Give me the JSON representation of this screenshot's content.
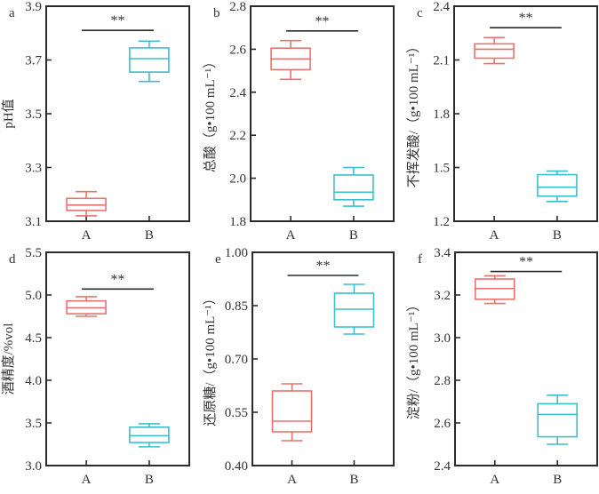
{
  "colors": {
    "A": "#e8736e",
    "B": "#3bbfcc",
    "axis": "#2b2b2b"
  },
  "chart_data": [
    {
      "type": "box",
      "panel_label": "a",
      "ylabel": "pH值",
      "ylim": [
        3.1,
        3.9
      ],
      "yticks": [
        "3.1",
        "3.3",
        "3.5",
        "3.7",
        "3.9"
      ],
      "categories": [
        "A",
        "B"
      ],
      "series": [
        {
          "name": "A",
          "whisker_low": 3.12,
          "q1": 3.14,
          "median": 3.16,
          "q3": 3.185,
          "whisker_high": 3.21
        },
        {
          "name": "B",
          "whisker_low": 3.62,
          "q1": 3.655,
          "median": 3.705,
          "q3": 3.745,
          "whisker_high": 3.77
        }
      ],
      "significance": {
        "label": "**",
        "level": 3.81
      }
    },
    {
      "type": "box",
      "panel_label": "b",
      "ylabel": "总酸（g•100 mL⁻¹）",
      "ylim": [
        1.8,
        2.8
      ],
      "yticks": [
        "1.8",
        "2.0",
        "2.2",
        "2.4",
        "2.6",
        "2.8"
      ],
      "categories": [
        "A",
        "B"
      ],
      "series": [
        {
          "name": "A",
          "whisker_low": 2.46,
          "q1": 2.505,
          "median": 2.555,
          "q3": 2.605,
          "whisker_high": 2.64
        },
        {
          "name": "B",
          "whisker_low": 1.87,
          "q1": 1.9,
          "median": 1.935,
          "q3": 2.015,
          "whisker_high": 2.05
        }
      ],
      "significance": {
        "label": "**",
        "level": 2.685
      }
    },
    {
      "type": "box",
      "panel_label": "c",
      "ylabel": "不挥发酸/（g•100 mL⁻¹）",
      "ylim": [
        1.2,
        2.4
      ],
      "yticks": [
        "1.2",
        "1.5",
        "1.8",
        "2.1",
        "2.4"
      ],
      "categories": [
        "A",
        "B"
      ],
      "series": [
        {
          "name": "A",
          "whisker_low": 2.08,
          "q1": 2.11,
          "median": 2.16,
          "q3": 2.19,
          "whisker_high": 2.225
        },
        {
          "name": "B",
          "whisker_low": 1.31,
          "q1": 1.34,
          "median": 1.39,
          "q3": 1.46,
          "whisker_high": 1.48
        }
      ],
      "significance": {
        "label": "**",
        "level": 2.28
      }
    },
    {
      "type": "box",
      "panel_label": "d",
      "ylabel": "酒精度/%vol",
      "ylim": [
        3.0,
        5.5
      ],
      "yticks": [
        "3.0",
        "3.5",
        "4.0",
        "4.5",
        "5.0",
        "5.5"
      ],
      "categories": [
        "A",
        "B"
      ],
      "series": [
        {
          "name": "A",
          "whisker_low": 4.75,
          "q1": 4.78,
          "median": 4.85,
          "q3": 4.93,
          "whisker_high": 4.98
        },
        {
          "name": "B",
          "whisker_low": 3.22,
          "q1": 3.27,
          "median": 3.35,
          "q3": 3.45,
          "whisker_high": 3.49
        }
      ],
      "significance": {
        "label": "**",
        "level": 5.07
      }
    },
    {
      "type": "box",
      "panel_label": "e",
      "ylabel": "还原糖/（g•100 mL⁻¹）",
      "ylim": [
        0.4,
        1.0
      ],
      "yticks": [
        "0.40",
        "0.55",
        "0.70",
        "0.85",
        "1.00"
      ],
      "categories": [
        "A",
        "B"
      ],
      "series": [
        {
          "name": "A",
          "whisker_low": 0.47,
          "q1": 0.495,
          "median": 0.525,
          "q3": 0.61,
          "whisker_high": 0.63
        },
        {
          "name": "B",
          "whisker_low": 0.77,
          "q1": 0.79,
          "median": 0.84,
          "q3": 0.885,
          "whisker_high": 0.91
        }
      ],
      "significance": {
        "label": "**",
        "level": 0.935
      }
    },
    {
      "type": "box",
      "panel_label": "f",
      "ylabel": "淀粉/（g•100 mL⁻¹）",
      "ylim": [
        2.4,
        3.4
      ],
      "yticks": [
        "2.4",
        "2.6",
        "2.8",
        "3.0",
        "3.2",
        "3.4"
      ],
      "categories": [
        "A",
        "B"
      ],
      "series": [
        {
          "name": "A",
          "whisker_low": 3.16,
          "q1": 3.18,
          "median": 3.23,
          "q3": 3.275,
          "whisker_high": 3.29
        },
        {
          "name": "B",
          "whisker_low": 2.5,
          "q1": 2.535,
          "median": 2.64,
          "q3": 2.69,
          "whisker_high": 2.73
        }
      ],
      "significance": {
        "label": "**",
        "level": 3.31
      }
    }
  ]
}
